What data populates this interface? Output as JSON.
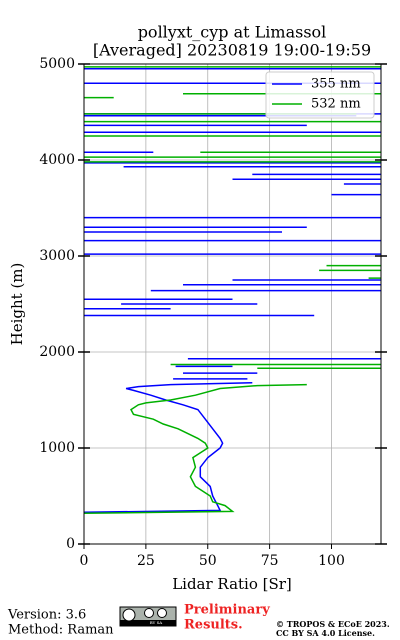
{
  "chart_data": {
    "type": "line",
    "title": "pollyxt_cyp at Limassol",
    "subtitle": "[Averaged] 20230819 19:00-19:59",
    "x_label": "Lidar Ratio [Sr]",
    "y_label": "Height (m)",
    "xlim": [
      0,
      120
    ],
    "xticks": [
      0,
      25,
      50,
      75,
      100
    ],
    "ylim": [
      0,
      5000
    ],
    "yticks": [
      0,
      1000,
      2000,
      3000,
      4000,
      5000
    ],
    "grid": true,
    "legend": "upper right",
    "series": [
      {
        "name": "355 nm",
        "color": "#0000ff",
        "x": [
          0,
          55,
          54,
          53,
          52,
          51,
          47,
          47,
          50,
          55,
          56,
          55,
          52,
          49,
          46,
          40,
          33,
          27,
          20,
          17,
          22,
          35,
          50,
          68,
          null,
          36,
          66,
          null,
          40,
          70,
          null,
          37,
          60,
          null,
          42,
          120,
          null,
          0,
          93,
          null,
          0,
          35,
          null,
          15,
          70,
          null,
          0,
          60,
          null,
          27,
          120,
          null,
          40,
          120,
          null,
          60,
          120,
          null,
          0,
          120,
          null,
          0,
          120,
          null,
          0,
          80,
          null,
          0,
          90,
          null,
          0,
          120,
          null,
          100,
          120,
          null,
          105,
          120,
          null,
          60,
          120,
          null,
          68,
          120,
          null,
          16,
          120,
          null,
          0,
          120,
          null,
          0,
          28,
          null,
          0,
          120,
          null,
          0,
          90,
          null,
          0,
          110,
          null,
          0,
          120,
          null,
          0,
          120,
          null,
          0,
          120
        ],
        "y": [
          330,
          350,
          400,
          450,
          500,
          600,
          700,
          800,
          900,
          1000,
          1050,
          1100,
          1200,
          1300,
          1400,
          1450,
          1500,
          1550,
          1600,
          1620,
          1640,
          1660,
          1670,
          1680,
          null,
          1720,
          1720,
          null,
          1780,
          1780,
          null,
          1850,
          1850,
          null,
          1930,
          1930,
          null,
          2380,
          2380,
          null,
          2450,
          2450,
          null,
          2500,
          2500,
          null,
          2550,
          2550,
          null,
          2640,
          2640,
          null,
          2700,
          2700,
          null,
          2750,
          2750,
          null,
          3020,
          3020,
          null,
          3160,
          3160,
          null,
          3250,
          3250,
          null,
          3300,
          3300,
          null,
          3400,
          3400,
          null,
          3640,
          3640,
          null,
          3750,
          3750,
          null,
          3800,
          3800,
          null,
          3850,
          3850,
          null,
          3930,
          3930,
          null,
          3970,
          3970,
          null,
          4080,
          4080,
          null,
          4290,
          4290,
          null,
          4360,
          4360,
          null,
          4460,
          4460,
          null,
          4480,
          4480,
          null,
          4800,
          4800,
          null,
          4950,
          4950
        ]
      },
      {
        "name": "532 nm",
        "color": "#00b000",
        "x": [
          0,
          60,
          57,
          52,
          51,
          45,
          43,
          45,
          44,
          50,
          49,
          46,
          38,
          32,
          28,
          20,
          19,
          22,
          25,
          35,
          45,
          55,
          70,
          90,
          null,
          70,
          120,
          null,
          35,
          120,
          null,
          115,
          120,
          null,
          95,
          120,
          null,
          98,
          120,
          null,
          0,
          120,
          null,
          0,
          120,
          null,
          47,
          120,
          null,
          0,
          120,
          null,
          0,
          120,
          null,
          0,
          110,
          null,
          0,
          12,
          null,
          40,
          120,
          null,
          0,
          120
        ],
        "y": [
          320,
          340,
          400,
          440,
          500,
          600,
          700,
          800,
          900,
          1000,
          1050,
          1100,
          1200,
          1250,
          1300,
          1350,
          1400,
          1450,
          1470,
          1500,
          1550,
          1620,
          1650,
          1660,
          null,
          1830,
          1830,
          null,
          1870,
          1870,
          null,
          2770,
          2770,
          null,
          2850,
          2850,
          null,
          2900,
          2900,
          null,
          3980,
          3980,
          null,
          4030,
          4030,
          null,
          4080,
          4080,
          null,
          4250,
          4250,
          null,
          4400,
          4400,
          null,
          4480,
          4480,
          null,
          4650,
          4650,
          null,
          4690,
          4690,
          null,
          4970,
          4970
        ]
      }
    ]
  },
  "footer": {
    "version": "Version: 3.6",
    "method": "Method: Raman",
    "preliminary": [
      "Preliminary",
      "Results."
    ],
    "badge": "BY SA",
    "copyright": [
      "© TROPOS & ECoE 2023.",
      "CC BY SA 4.0 License."
    ]
  }
}
